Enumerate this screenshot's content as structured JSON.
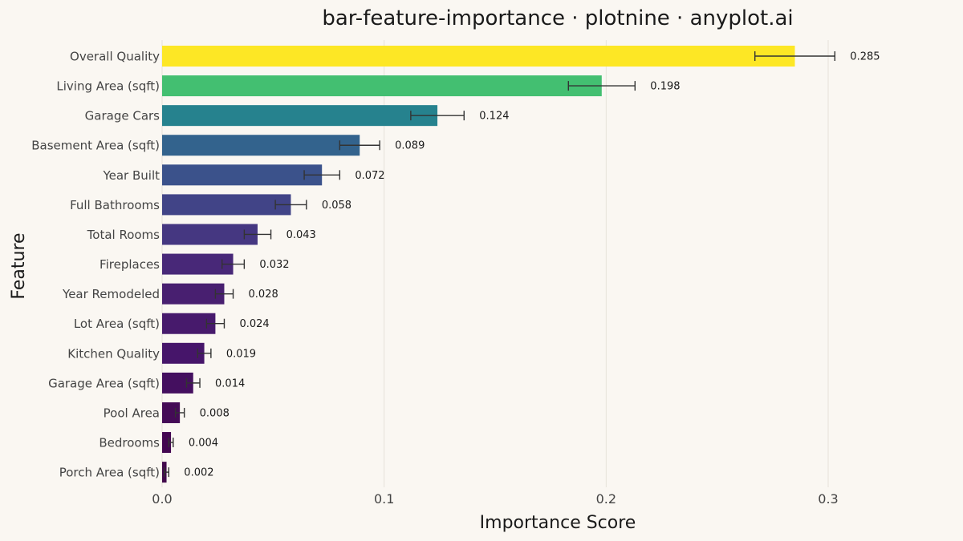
{
  "chart_data": {
    "type": "bar",
    "orientation": "horizontal",
    "title": "bar-feature-importance · plotnine · anyplot.ai",
    "xlabel": "Importance Score",
    "ylabel": "Feature",
    "xlim": [
      0,
      0.3
    ],
    "xticks": [
      0,
      0.1,
      0.2,
      0.3
    ],
    "xtick_labels": [
      "0.0",
      "0.1",
      "0.2",
      "0.3"
    ],
    "grid": "vertical",
    "categories": [
      "Overall Quality",
      "Living Area (sqft)",
      "Garage Cars",
      "Basement Area (sqft)",
      "Year Built",
      "Full Bathrooms",
      "Total Rooms",
      "Fireplaces",
      "Year Remodeled",
      "Lot Area (sqft)",
      "Kitchen Quality",
      "Garage Area (sqft)",
      "Pool Area",
      "Bedrooms",
      "Porch Area (sqft)"
    ],
    "values": [
      0.285,
      0.198,
      0.124,
      0.089,
      0.072,
      0.058,
      0.043,
      0.032,
      0.028,
      0.024,
      0.019,
      0.014,
      0.008,
      0.004,
      0.002
    ],
    "value_labels": [
      "0.285",
      "0.198",
      "0.124",
      "0.089",
      "0.072",
      "0.058",
      "0.043",
      "0.032",
      "0.028",
      "0.024",
      "0.019",
      "0.014",
      "0.008",
      "0.004",
      "0.002"
    ],
    "errors": [
      0.018,
      0.015,
      0.012,
      0.009,
      0.008,
      0.007,
      0.006,
      0.005,
      0.004,
      0.004,
      0.003,
      0.003,
      0.002,
      0.001,
      0.001
    ],
    "colors": [
      "#FDE725",
      "#43BF71",
      "#26828E",
      "#33638D",
      "#3B528B",
      "#414487",
      "#453781",
      "#482878",
      "#481F70",
      "#471A6C",
      "#46156A",
      "#440F5F",
      "#440B56",
      "#430751",
      "#420A4D"
    ],
    "error_bar_color": "#333333",
    "background": "#FAF7F2"
  }
}
